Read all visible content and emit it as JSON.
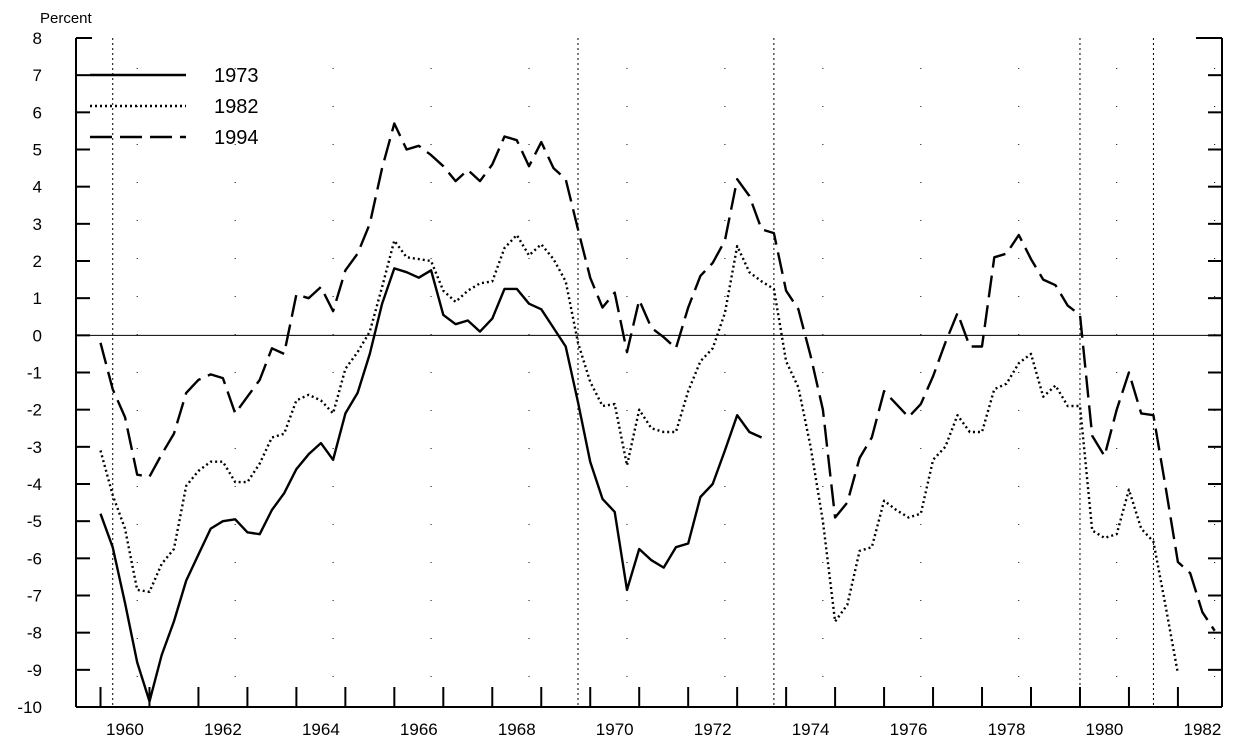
{
  "chart_data": {
    "type": "line",
    "ylabel": "Percent",
    "ylim": [
      -10,
      8
    ],
    "xlim": [
      1959.5,
      1982.9
    ],
    "y_ticks": [
      "8",
      "7",
      "6",
      "5",
      "4",
      "3",
      "2",
      "1",
      "0",
      "-1",
      "-2",
      "-3",
      "-4",
      "-5",
      "-6",
      "-7",
      "-8",
      "-9",
      "-10"
    ],
    "x_tick_labels": [
      "1960",
      "1962",
      "1964",
      "1966",
      "1968",
      "1970",
      "1972",
      "1974",
      "1976",
      "1978",
      "1980",
      "1982"
    ],
    "legend_position": "top-left",
    "recession_markers_dotted": [
      1960.25,
      1969.75,
      1973.75,
      1980.0,
      1981.5
    ],
    "series": [
      {
        "name": "1973",
        "style": "solid",
        "points": [
          [
            1960.0,
            -4.8
          ],
          [
            1960.25,
            -5.7
          ],
          [
            1960.5,
            -7.2
          ],
          [
            1960.75,
            -8.8
          ],
          [
            1961.0,
            -9.85
          ],
          [
            1961.25,
            -8.6
          ],
          [
            1961.5,
            -7.7
          ],
          [
            1961.75,
            -6.6
          ],
          [
            1962.0,
            -5.9
          ],
          [
            1962.25,
            -5.2
          ],
          [
            1962.5,
            -5.0
          ],
          [
            1962.75,
            -4.95
          ],
          [
            1963.0,
            -5.3
          ],
          [
            1963.25,
            -5.35
          ],
          [
            1963.5,
            -4.7
          ],
          [
            1963.75,
            -4.25
          ],
          [
            1964.0,
            -3.6
          ],
          [
            1964.25,
            -3.2
          ],
          [
            1964.5,
            -2.9
          ],
          [
            1964.75,
            -3.35
          ],
          [
            1965.0,
            -2.1
          ],
          [
            1965.25,
            -1.55
          ],
          [
            1965.5,
            -0.5
          ],
          [
            1965.75,
            0.85
          ],
          [
            1966.0,
            1.8
          ],
          [
            1966.25,
            1.7
          ],
          [
            1966.5,
            1.55
          ],
          [
            1966.75,
            1.75
          ],
          [
            1967.0,
            0.55
          ],
          [
            1967.25,
            0.3
          ],
          [
            1967.5,
            0.4
          ],
          [
            1967.75,
            0.1
          ],
          [
            1968.0,
            0.45
          ],
          [
            1968.25,
            1.25
          ],
          [
            1968.5,
            1.25
          ],
          [
            1968.75,
            0.85
          ],
          [
            1969.0,
            0.7
          ],
          [
            1969.25,
            0.2
          ],
          [
            1969.5,
            -0.3
          ],
          [
            1969.75,
            -1.8
          ],
          [
            1970.0,
            -3.4
          ],
          [
            1970.25,
            -4.4
          ],
          [
            1970.5,
            -4.75
          ],
          [
            1970.75,
            -6.85
          ],
          [
            1971.0,
            -5.75
          ],
          [
            1971.25,
            -6.05
          ],
          [
            1971.5,
            -6.25
          ],
          [
            1971.75,
            -5.7
          ],
          [
            1972.0,
            -5.6
          ],
          [
            1972.25,
            -4.35
          ],
          [
            1972.5,
            -4.0
          ],
          [
            1972.75,
            -3.1
          ],
          [
            1973.0,
            -2.15
          ],
          [
            1973.25,
            -2.6
          ],
          [
            1973.5,
            -2.75
          ]
        ]
      },
      {
        "name": "1982",
        "style": "dotted",
        "points": [
          [
            1960.0,
            -3.1
          ],
          [
            1960.25,
            -4.3
          ],
          [
            1960.5,
            -5.2
          ],
          [
            1960.75,
            -6.85
          ],
          [
            1961.0,
            -6.9
          ],
          [
            1961.25,
            -6.15
          ],
          [
            1961.5,
            -5.75
          ],
          [
            1961.75,
            -4.05
          ],
          [
            1962.0,
            -3.65
          ],
          [
            1962.25,
            -3.4
          ],
          [
            1962.5,
            -3.4
          ],
          [
            1962.75,
            -3.95
          ],
          [
            1963.0,
            -3.95
          ],
          [
            1963.25,
            -3.45
          ],
          [
            1963.5,
            -2.75
          ],
          [
            1963.75,
            -2.65
          ],
          [
            1964.0,
            -1.75
          ],
          [
            1964.25,
            -1.6
          ],
          [
            1964.5,
            -1.75
          ],
          [
            1964.75,
            -2.1
          ],
          [
            1965.0,
            -0.9
          ],
          [
            1965.25,
            -0.45
          ],
          [
            1965.5,
            0.1
          ],
          [
            1965.75,
            1.3
          ],
          [
            1966.0,
            2.55
          ],
          [
            1966.25,
            2.1
          ],
          [
            1966.5,
            2.05
          ],
          [
            1966.75,
            2.0
          ],
          [
            1967.0,
            1.2
          ],
          [
            1967.25,
            0.9
          ],
          [
            1967.5,
            1.2
          ],
          [
            1967.75,
            1.4
          ],
          [
            1968.0,
            1.45
          ],
          [
            1968.25,
            2.35
          ],
          [
            1968.5,
            2.7
          ],
          [
            1968.75,
            2.15
          ],
          [
            1969.0,
            2.45
          ],
          [
            1969.25,
            2.05
          ],
          [
            1969.5,
            1.45
          ],
          [
            1969.75,
            -0.2
          ],
          [
            1970.0,
            -1.25
          ],
          [
            1970.25,
            -1.9
          ],
          [
            1970.5,
            -1.85
          ],
          [
            1970.75,
            -3.5
          ],
          [
            1971.0,
            -2.0
          ],
          [
            1971.25,
            -2.5
          ],
          [
            1971.5,
            -2.6
          ],
          [
            1971.75,
            -2.6
          ],
          [
            1972.0,
            -1.5
          ],
          [
            1972.25,
            -0.7
          ],
          [
            1972.5,
            -0.35
          ],
          [
            1972.75,
            0.6
          ],
          [
            1973.0,
            2.4
          ],
          [
            1973.25,
            1.7
          ],
          [
            1973.5,
            1.45
          ],
          [
            1973.75,
            1.25
          ],
          [
            1974.0,
            -0.7
          ],
          [
            1974.25,
            -1.4
          ],
          [
            1974.5,
            -3.0
          ],
          [
            1974.75,
            -5.0
          ],
          [
            1975.0,
            -7.7
          ],
          [
            1975.25,
            -7.25
          ],
          [
            1975.5,
            -5.8
          ],
          [
            1975.75,
            -5.7
          ],
          [
            1976.0,
            -4.45
          ],
          [
            1976.25,
            -4.7
          ],
          [
            1976.5,
            -4.9
          ],
          [
            1976.75,
            -4.8
          ],
          [
            1977.0,
            -3.35
          ],
          [
            1977.25,
            -3.0
          ],
          [
            1977.5,
            -2.15
          ],
          [
            1977.75,
            -2.6
          ],
          [
            1978.0,
            -2.6
          ],
          [
            1978.25,
            -1.45
          ],
          [
            1978.5,
            -1.3
          ],
          [
            1978.75,
            -0.75
          ],
          [
            1979.0,
            -0.5
          ],
          [
            1979.25,
            -1.65
          ],
          [
            1979.5,
            -1.35
          ],
          [
            1979.75,
            -1.9
          ],
          [
            1980.0,
            -1.9
          ],
          [
            1980.25,
            -5.25
          ],
          [
            1980.5,
            -5.45
          ],
          [
            1980.75,
            -5.35
          ],
          [
            1981.0,
            -4.15
          ],
          [
            1981.25,
            -5.2
          ],
          [
            1981.5,
            -5.55
          ],
          [
            1981.75,
            -7.3
          ],
          [
            1982.0,
            -9.1
          ]
        ]
      },
      {
        "name": "1994",
        "style": "dashed",
        "points": [
          [
            1960.0,
            -0.2
          ],
          [
            1960.25,
            -1.45
          ],
          [
            1960.5,
            -2.2
          ],
          [
            1960.75,
            -3.75
          ],
          [
            1961.0,
            -3.8
          ],
          [
            1961.25,
            -3.2
          ],
          [
            1961.5,
            -2.65
          ],
          [
            1961.75,
            -1.55
          ],
          [
            1962.0,
            -1.2
          ],
          [
            1962.25,
            -1.05
          ],
          [
            1962.5,
            -1.15
          ],
          [
            1962.75,
            -2.1
          ],
          [
            1963.0,
            -1.65
          ],
          [
            1963.25,
            -1.2
          ],
          [
            1963.5,
            -0.35
          ],
          [
            1963.75,
            -0.5
          ],
          [
            1964.0,
            1.1
          ],
          [
            1964.25,
            1.0
          ],
          [
            1964.5,
            1.3
          ],
          [
            1964.75,
            0.65
          ],
          [
            1965.0,
            1.75
          ],
          [
            1965.25,
            2.2
          ],
          [
            1965.5,
            3.0
          ],
          [
            1965.75,
            4.5
          ],
          [
            1966.0,
            5.7
          ],
          [
            1966.25,
            5.0
          ],
          [
            1966.5,
            5.1
          ],
          [
            1966.75,
            4.85
          ],
          [
            1967.0,
            4.55
          ],
          [
            1967.25,
            4.15
          ],
          [
            1967.5,
            4.45
          ],
          [
            1967.75,
            4.15
          ],
          [
            1968.0,
            4.6
          ],
          [
            1968.25,
            5.35
          ],
          [
            1968.5,
            5.25
          ],
          [
            1968.75,
            4.55
          ],
          [
            1969.0,
            5.2
          ],
          [
            1969.25,
            4.5
          ],
          [
            1969.5,
            4.2
          ],
          [
            1969.75,
            2.85
          ],
          [
            1970.0,
            1.55
          ],
          [
            1970.25,
            0.75
          ],
          [
            1970.5,
            1.15
          ],
          [
            1970.75,
            -0.45
          ],
          [
            1971.0,
            0.95
          ],
          [
            1971.25,
            0.2
          ],
          [
            1971.5,
            -0.05
          ],
          [
            1971.75,
            -0.35
          ],
          [
            1972.0,
            0.75
          ],
          [
            1972.25,
            1.6
          ],
          [
            1972.5,
            1.95
          ],
          [
            1972.75,
            2.55
          ],
          [
            1973.0,
            4.2
          ],
          [
            1973.25,
            3.75
          ],
          [
            1973.5,
            2.85
          ],
          [
            1973.75,
            2.75
          ],
          [
            1974.0,
            1.2
          ],
          [
            1974.25,
            0.7
          ],
          [
            1974.5,
            -0.55
          ],
          [
            1974.75,
            -2.0
          ],
          [
            1975.0,
            -4.9
          ],
          [
            1975.25,
            -4.5
          ],
          [
            1975.5,
            -3.3
          ],
          [
            1975.75,
            -2.75
          ],
          [
            1976.0,
            -1.5
          ],
          [
            1976.25,
            -1.85
          ],
          [
            1976.5,
            -2.2
          ],
          [
            1976.75,
            -1.85
          ],
          [
            1977.0,
            -1.1
          ],
          [
            1977.25,
            -0.2
          ],
          [
            1977.5,
            0.6
          ],
          [
            1977.75,
            -0.3
          ],
          [
            1978.0,
            -0.3
          ],
          [
            1978.25,
            2.1
          ],
          [
            1978.5,
            2.2
          ],
          [
            1978.75,
            2.7
          ],
          [
            1979.0,
            2.05
          ],
          [
            1979.25,
            1.5
          ],
          [
            1979.5,
            1.35
          ],
          [
            1979.75,
            0.8
          ],
          [
            1980.0,
            0.55
          ],
          [
            1980.25,
            -2.7
          ],
          [
            1980.5,
            -3.25
          ],
          [
            1980.75,
            -2.0
          ],
          [
            1981.0,
            -1.0
          ],
          [
            1981.25,
            -2.1
          ],
          [
            1981.5,
            -2.15
          ],
          [
            1981.75,
            -4.1
          ],
          [
            1982.0,
            -6.1
          ],
          [
            1982.25,
            -6.4
          ],
          [
            1982.5,
            -7.45
          ],
          [
            1982.75,
            -7.95
          ]
        ]
      }
    ]
  }
}
